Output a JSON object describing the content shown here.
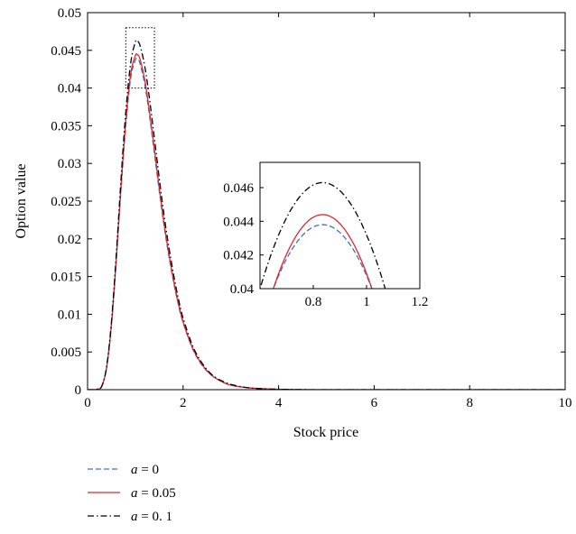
{
  "chart_data": {
    "type": "line",
    "title": "",
    "xlabel": "Stock price",
    "ylabel": "Option value",
    "xlim": [
      0,
      10
    ],
    "ylim": [
      0,
      0.05
    ],
    "xticks": [
      "0",
      "2",
      "4",
      "6",
      "8",
      "10"
    ],
    "yticks": [
      "0",
      "0.005",
      "0.01",
      "0.015",
      "0.02",
      "0.025",
      "0.03",
      "0.035",
      "0.04",
      "0.045",
      "0.05"
    ],
    "grid": false,
    "legend_position": "below",
    "series": [
      {
        "name": "a = 0",
        "name_parts": [
          "a",
          " = 0"
        ],
        "color": "#4a6fbf",
        "style": "dashed",
        "x": [
          0,
          0.2,
          0.3,
          0.4,
          0.5,
          0.6,
          0.7,
          0.8,
          0.9,
          1.0,
          1.05,
          1.1,
          1.2,
          1.3,
          1.4,
          1.5,
          1.6,
          1.7,
          1.8,
          1.9,
          2.0,
          2.2,
          2.4,
          2.6,
          2.8,
          3.0,
          3.3,
          3.6,
          4.0,
          4.5,
          5.0,
          6.0,
          8.0,
          10.0
        ],
        "y": [
          0,
          5e-05,
          0.0005,
          0.003,
          0.0085,
          0.017,
          0.0265,
          0.035,
          0.0412,
          0.0437,
          0.0438,
          0.0432,
          0.0404,
          0.0362,
          0.0313,
          0.0264,
          0.0218,
          0.0178,
          0.0143,
          0.0113,
          0.0089,
          0.0054,
          0.0032,
          0.0019,
          0.0011,
          0.0006,
          0.0003,
          0.00015,
          5e-05,
          1e-05,
          0,
          0,
          0,
          0
        ]
      },
      {
        "name": "a = 0.05",
        "name_parts": [
          "a",
          " = 0.05"
        ],
        "color": "#e0262e",
        "style": "solid",
        "x": [
          0,
          0.2,
          0.3,
          0.4,
          0.5,
          0.6,
          0.7,
          0.8,
          0.9,
          1.0,
          1.05,
          1.1,
          1.2,
          1.3,
          1.4,
          1.5,
          1.6,
          1.7,
          1.8,
          1.9,
          2.0,
          2.2,
          2.4,
          2.6,
          2.8,
          3.0,
          3.3,
          3.6,
          4.0,
          4.5,
          5.0,
          6.0,
          8.0,
          10.0
        ],
        "y": [
          0,
          5e-05,
          0.0005,
          0.003,
          0.0087,
          0.0173,
          0.027,
          0.0356,
          0.0418,
          0.0443,
          0.0444,
          0.0438,
          0.041,
          0.0367,
          0.0318,
          0.0268,
          0.0221,
          0.0181,
          0.0145,
          0.0115,
          0.009,
          0.0055,
          0.0033,
          0.0019,
          0.0011,
          0.0006,
          0.0003,
          0.00015,
          5e-05,
          1e-05,
          0,
          0,
          0,
          0
        ]
      },
      {
        "name": "a = 0. 1",
        "name_parts": [
          "a",
          " = 0. 1"
        ],
        "color": "#000000",
        "style": "dashdot",
        "x": [
          0,
          0.2,
          0.3,
          0.4,
          0.5,
          0.6,
          0.7,
          0.8,
          0.9,
          1.0,
          1.05,
          1.1,
          1.2,
          1.3,
          1.4,
          1.5,
          1.6,
          1.7,
          1.8,
          1.9,
          2.0,
          2.2,
          2.4,
          2.6,
          2.8,
          3.0,
          3.3,
          3.6,
          4.0,
          4.5,
          5.0,
          6.0,
          8.0,
          10.0
        ],
        "y": [
          0,
          5e-05,
          0.0005,
          0.0031,
          0.009,
          0.0178,
          0.0279,
          0.0368,
          0.0432,
          0.0461,
          0.0462,
          0.0456,
          0.0428,
          0.0384,
          0.0333,
          0.0281,
          0.0232,
          0.019,
          0.0153,
          0.0121,
          0.0095,
          0.0058,
          0.0035,
          0.002,
          0.0012,
          0.0007,
          0.0003,
          0.00015,
          5e-05,
          1e-05,
          0,
          0,
          0,
          0
        ]
      }
    ],
    "highlight_box": {
      "xlim": [
        0.8,
        1.4
      ],
      "ylim": [
        0.04,
        0.048
      ]
    },
    "inset": {
      "xlim": [
        0.6,
        1.2
      ],
      "ylim": [
        0.04,
        0.0475
      ],
      "xticks": [
        "0.8",
        "1",
        "1.2"
      ],
      "yticks": [
        "0.04",
        "0.042",
        "0.044",
        "0.046"
      ],
      "curves": [
        {
          "series": "a = 0",
          "peak_x": 0.835,
          "peak_y": 0.0438,
          "half_width": 0.185
        },
        {
          "series": "a = 0.05",
          "peak_x": 0.835,
          "peak_y": 0.0444,
          "half_width": 0.185
        },
        {
          "series": "a = 0. 1",
          "peak_x": 0.835,
          "peak_y": 0.0463,
          "half_width": 0.235
        }
      ]
    }
  }
}
